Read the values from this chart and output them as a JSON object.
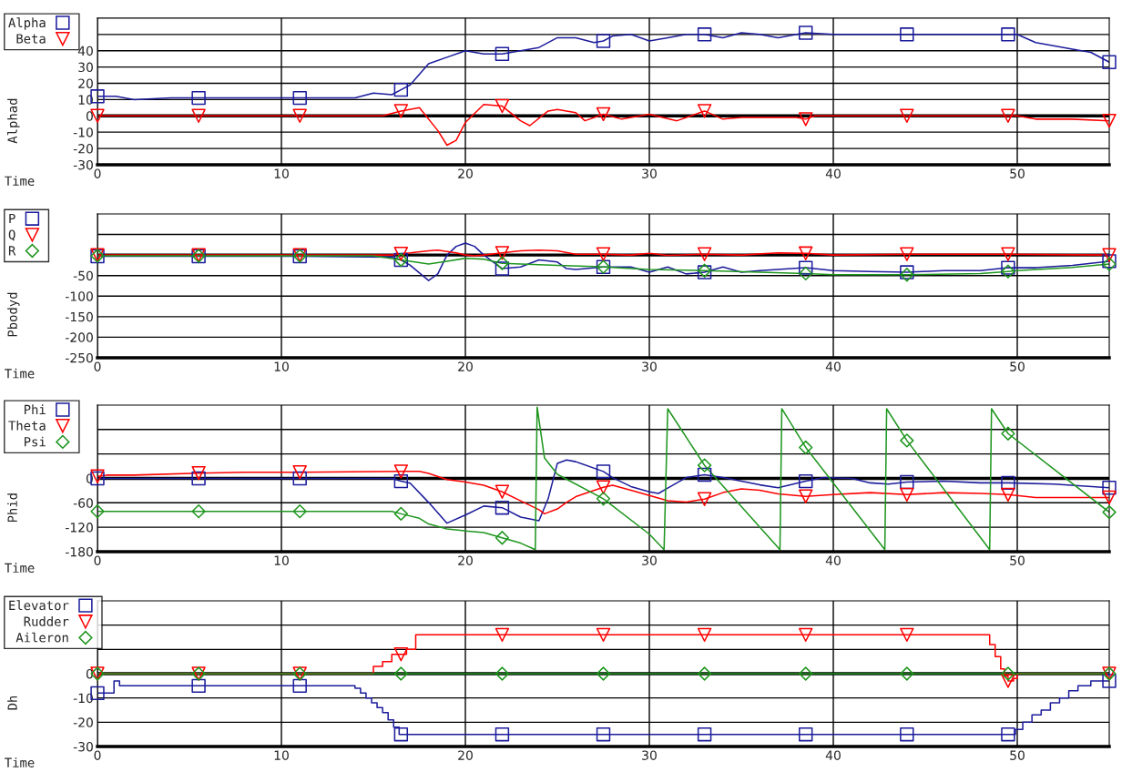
{
  "chart_data": [
    {
      "type": "line",
      "xlabel": "Time",
      "ylabel": "Alphad",
      "xlim": [
        0,
        55
      ],
      "xticks": [
        0,
        10,
        20,
        30,
        40,
        50
      ],
      "ylim": [
        -30,
        60
      ],
      "yticks": [
        -30,
        -20,
        -10,
        0,
        10,
        20,
        30,
        40,
        {
          "value": 50,
          "label": null
        }
      ],
      "grid": true,
      "legend": "top left",
      "ref_lines": [
        {
          "axis": "y",
          "value": 0,
          "color": "#000000"
        }
      ],
      "series": [
        {
          "color": "#1c1c9c",
          "x": [
            0,
            1,
            2,
            4,
            5.5,
            8,
            11,
            14,
            15,
            16,
            16.5,
            17,
            18,
            19,
            20,
            21,
            22,
            23,
            24,
            25,
            26,
            27,
            27.5,
            28,
            29,
            30,
            31,
            32,
            33,
            34,
            35,
            36,
            37,
            38,
            38.5,
            40,
            42,
            44,
            46,
            48,
            49.5,
            50,
            51,
            53,
            54,
            55
          ],
          "values": [
            12,
            12,
            10,
            11,
            11,
            11,
            11,
            11,
            14,
            13,
            16,
            19,
            32,
            36,
            40,
            38,
            38,
            40,
            42,
            48,
            48,
            45,
            46,
            49,
            50,
            46,
            48,
            50,
            50,
            48,
            51,
            50,
            48,
            50,
            51,
            50,
            50,
            50,
            50,
            50,
            50,
            50,
            45,
            41,
            39,
            33
          ]
        },
        {
          "name": "Alpha",
          "type": "scatter",
          "color": "#1c1c9c",
          "marker": "square",
          "x": [
            0,
            5.5,
            11,
            16.5,
            22,
            27.5,
            33,
            38.5,
            44,
            49.5,
            55
          ],
          "values": [
            12,
            11,
            11,
            16,
            38,
            46,
            50,
            51,
            50,
            50,
            33
          ]
        },
        {
          "color": "#ff0000",
          "x": [
            0,
            5.5,
            11,
            15.5,
            16.5,
            17.5,
            18.5,
            19,
            19.5,
            20,
            21,
            22,
            23,
            23.5,
            24.5,
            25,
            26,
            26.5,
            27.5,
            28.5,
            30,
            31.5,
            33,
            34,
            35,
            38,
            38.5,
            39,
            40,
            44,
            49.5,
            50,
            51,
            53,
            55
          ],
          "values": [
            0,
            0,
            0,
            0,
            3,
            5,
            -9,
            -18,
            -15,
            -4,
            7,
            6,
            -3,
            -6,
            3,
            4,
            2,
            -3,
            1,
            -2,
            1,
            -3,
            3,
            -2,
            -1,
            -1,
            -2,
            0,
            0,
            0,
            0,
            0,
            -2,
            -2,
            -3
          ]
        },
        {
          "name": "Beta",
          "type": "scatter",
          "color": "#ff0000",
          "marker": "triangle",
          "x": [
            0,
            5.5,
            11,
            16.5,
            22,
            27.5,
            33,
            38.5,
            44,
            49.5,
            55
          ],
          "values": [
            0,
            0,
            0,
            3,
            6,
            1,
            3,
            -2,
            0,
            0,
            -3
          ]
        }
      ]
    },
    {
      "type": "line",
      "xlabel": "Time",
      "ylabel": "Pbodyd",
      "xlim": [
        0,
        55
      ],
      "xticks": [
        0,
        10,
        20,
        30,
        40,
        50
      ],
      "ylim": [
        -250,
        100
      ],
      "yticks": [
        -250,
        -200,
        -150,
        -100,
        -50,
        {
          "value": 0,
          "label": null
        },
        {
          "value": 50,
          "label": null
        }
      ],
      "grid": true,
      "legend": "top left",
      "ref_lines": [
        {
          "axis": "y",
          "value": 0,
          "color": "#000000"
        }
      ],
      "series": [
        {
          "color": "#1c1c9c",
          "x": [
            0,
            5.5,
            11,
            16,
            16.5,
            17,
            18,
            18.5,
            19,
            19.5,
            20,
            20.5,
            21,
            22,
            23,
            24,
            25,
            25.5,
            26,
            27.5,
            29,
            30,
            31,
            32,
            33,
            34,
            35,
            36,
            38.5,
            40,
            42,
            44,
            46,
            48,
            49.5,
            51,
            53,
            55
          ],
          "values": [
            -3,
            -3,
            -3,
            -5,
            -12,
            -25,
            -62,
            -46,
            0,
            21,
            29,
            21,
            0,
            -33,
            -29,
            -12,
            -17,
            -33,
            -35,
            -29,
            -29,
            -42,
            -29,
            -46,
            -42,
            -29,
            -42,
            -38,
            -31,
            -38,
            -40,
            -42,
            -38,
            -38,
            -31,
            -31,
            -25,
            -15
          ]
        },
        {
          "name": "P",
          "type": "scatter",
          "color": "#1c1c9c",
          "marker": "square",
          "x": [
            0,
            5.5,
            11,
            16.5,
            22,
            27.5,
            33,
            38.5,
            44,
            49.5,
            55
          ],
          "values": [
            -3,
            -3,
            -3,
            -12,
            -33,
            -29,
            -42,
            -31,
            -42,
            -31,
            -15
          ]
        },
        {
          "color": "#ff0000",
          "x": [
            0,
            5.5,
            11,
            16,
            16.5,
            17,
            18,
            18.5,
            19.5,
            20,
            20.5,
            21,
            22,
            23,
            24,
            25,
            26,
            27.5,
            29,
            30,
            31,
            33,
            35,
            37,
            38.5,
            40,
            44,
            49.5,
            55
          ],
          "values": [
            0,
            0,
            0,
            0,
            3,
            5,
            10,
            12,
            5,
            0,
            -2,
            0,
            5,
            10,
            12,
            10,
            2,
            2,
            0,
            4,
            -1,
            2,
            0,
            5,
            4,
            0,
            2,
            2,
            0
          ]
        },
        {
          "name": "Q",
          "type": "scatter",
          "color": "#ff0000",
          "marker": "triangle",
          "x": [
            0,
            5.5,
            11,
            16.5,
            22,
            27.5,
            33,
            38.5,
            44,
            49.5,
            55
          ],
          "values": [
            0,
            0,
            0,
            3,
            5,
            2,
            2,
            4,
            2,
            2,
            0
          ]
        },
        {
          "color": "#1e961e",
          "x": [
            0,
            5.5,
            11,
            15,
            16.5,
            17,
            18,
            19,
            20,
            21,
            22,
            23,
            25,
            27,
            27.5,
            30,
            33,
            36,
            38.5,
            40,
            44,
            48,
            49.5,
            50,
            53,
            55
          ],
          "values": [
            -2,
            -2,
            -2,
            -2,
            -12,
            -15,
            -22,
            -15,
            -8,
            -10,
            -20,
            -22,
            -25,
            -28,
            -29,
            -35,
            -38,
            -42,
            -45,
            -48,
            -48,
            -45,
            -40,
            -38,
            -30,
            -22
          ]
        },
        {
          "name": "R",
          "type": "scatter",
          "color": "#1e961e",
          "marker": "diamond",
          "x": [
            0,
            5.5,
            11,
            16.5,
            22,
            27.5,
            33,
            38.5,
            44,
            49.5,
            55
          ],
          "values": [
            -2,
            -2,
            -2,
            -12,
            -20,
            -29,
            -38,
            -45,
            -48,
            -40,
            -22
          ]
        }
      ]
    },
    {
      "type": "line",
      "xlabel": "Time",
      "ylabel": "Phid",
      "xlim": [
        0,
        55
      ],
      "xticks": [
        0,
        10,
        20,
        30,
        40,
        50
      ],
      "ylim": [
        -180,
        180
      ],
      "yticks": [
        -180,
        -120,
        -60,
        0,
        {
          "value": 60,
          "label": null
        },
        {
          "value": 120,
          "label": null
        }
      ],
      "grid": true,
      "legend": "top left",
      "ref_lines": [
        {
          "axis": "y",
          "value": 0,
          "color": "#000000"
        }
      ],
      "series": [
        {
          "color": "#1c1c9c",
          "x": [
            0,
            5.5,
            11,
            16,
            16.5,
            17,
            18,
            19,
            20,
            21,
            22,
            23,
            24,
            24.5,
            25,
            25.5,
            26,
            27.5,
            28,
            29,
            30,
            30.5,
            31,
            32,
            33,
            34,
            36,
            37,
            38.5,
            39.5,
            41,
            42,
            43,
            44,
            46,
            48,
            49.5,
            52,
            55
          ],
          "values": [
            0,
            0,
            0,
            0,
            -7,
            -12,
            -59,
            -110,
            -90,
            -68,
            -72,
            -95,
            -104,
            -50,
            37,
            45,
            41,
            17,
            2,
            -20,
            -33,
            -37,
            -24,
            2,
            9,
            2,
            -16,
            -23,
            -7,
            2,
            0,
            -11,
            -14,
            -9,
            -7,
            -11,
            -11,
            -14,
            -23
          ]
        },
        {
          "name": "Phi",
          "type": "scatter",
          "color": "#1c1c9c",
          "marker": "square",
          "x": [
            0,
            5.5,
            11,
            16.5,
            22,
            27.5,
            33,
            38.5,
            44,
            49.5,
            55
          ],
          "values": [
            0,
            0,
            0,
            -7,
            -72,
            17,
            9,
            -7,
            -9,
            -11,
            -23
          ]
        },
        {
          "color": "#ff0000",
          "x": [
            0,
            0.5,
            2,
            5.5,
            8,
            11,
            16.5,
            17.5,
            18,
            19,
            20,
            21,
            22,
            23,
            24,
            24.3,
            25,
            25.5,
            26,
            27.5,
            28,
            29,
            30,
            31,
            32,
            33,
            34,
            35,
            36,
            37,
            38.5,
            40,
            42,
            44,
            46,
            48,
            49.5,
            51,
            55
          ],
          "values": [
            5,
            8,
            8,
            13,
            15,
            15,
            17,
            17,
            12,
            -3,
            -9,
            -17,
            -33,
            -55,
            -77,
            -87,
            -75,
            -59,
            -45,
            -22,
            -17,
            -29,
            -42,
            -55,
            -58,
            -51,
            -35,
            -26,
            -29,
            -38,
            -44,
            -40,
            -35,
            -40,
            -35,
            -37,
            -40,
            -47,
            -47
          ]
        },
        {
          "name": "Theta",
          "type": "scatter",
          "color": "#ff0000",
          "marker": "triangle",
          "x": [
            0,
            5.5,
            11,
            16.5,
            22,
            27.5,
            33,
            38.5,
            44,
            49.5,
            55
          ],
          "values": [
            5,
            13,
            15,
            17,
            -33,
            -22,
            -51,
            -44,
            -40,
            -40,
            -47
          ]
        },
        {
          "color": "#1e961e",
          "x": [
            0,
            5.5,
            11,
            16,
            16.5,
            17.5,
            18,
            19,
            20,
            21,
            22,
            23,
            23.8,
            23.9,
            24.3,
            25,
            27.5,
            30,
            30.8,
            31,
            33,
            37.1,
            37.2,
            38.5,
            42.8,
            42.9,
            44,
            48.5,
            48.6,
            49.5,
            55
          ],
          "values": [
            -81,
            -81,
            -81,
            -81,
            -87,
            -98,
            -112,
            -124,
            -129,
            -133,
            -146,
            -159,
            -175,
            175,
            50,
            10,
            -50,
            -137,
            -175,
            171,
            32,
            -175,
            171,
            76,
            -175,
            171,
            93,
            -175,
            171,
            110,
            -83
          ]
        },
        {
          "name": "Psi",
          "type": "scatter",
          "color": "#1e961e",
          "marker": "diamond",
          "x": [
            0,
            5.5,
            11,
            16.5,
            22,
            27.5,
            33,
            38.5,
            44,
            49.5,
            55
          ],
          "values": [
            -81,
            -81,
            -81,
            -87,
            -146,
            -50,
            32,
            76,
            93,
            110,
            -83
          ]
        }
      ]
    },
    {
      "type": "line",
      "xlabel": "Time",
      "ylabel": "Dh",
      "xlim": [
        0,
        55
      ],
      "xticks": [
        0,
        10,
        20,
        30,
        40,
        50
      ],
      "ylim": [
        -30,
        30
      ],
      "yticks": [
        -30,
        -20,
        -10,
        0,
        {
          "value": 10,
          "label": null
        },
        {
          "value": 20,
          "label": null
        }
      ],
      "grid": true,
      "legend": "top left",
      "ref_lines": [
        {
          "axis": "y",
          "value": 0,
          "color": "#000000"
        }
      ],
      "series": [
        {
          "type": "step",
          "color": "#1c1c9c",
          "x": [
            0,
            0.9,
            1.2,
            5.5,
            11,
            14,
            14.3,
            14.6,
            14.9,
            15.2,
            15.5,
            15.8,
            16.1,
            16.4,
            16.5,
            22,
            27.5,
            33,
            38.5,
            44,
            49.5,
            49.9,
            50.3,
            50.8,
            51.3,
            51.8,
            52.3,
            52.8,
            53.3,
            54,
            55
          ],
          "values": [
            -8,
            -3,
            -5,
            -5,
            -5,
            -6,
            -8,
            -10,
            -12,
            -14,
            -16,
            -19,
            -22,
            -25,
            -25,
            -25,
            -25,
            -25,
            -25,
            -25,
            -25,
            -23,
            -20,
            -17,
            -15,
            -12,
            -10,
            -7,
            -5,
            -3,
            -3
          ]
        },
        {
          "name": "Elevator",
          "type": "scatter",
          "color": "#1c1c9c",
          "marker": "square",
          "x": [
            0,
            5.5,
            11,
            16.5,
            22,
            27.5,
            33,
            38.5,
            44,
            49.5,
            55
          ],
          "values": [
            -8,
            -5,
            -5,
            -25,
            -25,
            -25,
            -25,
            -25,
            -25,
            -25,
            -3
          ]
        },
        {
          "type": "step",
          "color": "#ff0000",
          "x": [
            0,
            5.5,
            11,
            15,
            15.5,
            16,
            16.5,
            16.8,
            17.3,
            22,
            27.5,
            33,
            38.5,
            44,
            48.5,
            48.8,
            49.1,
            49.3,
            49.5,
            49.8,
            50,
            55
          ],
          "values": [
            0,
            0,
            0,
            3,
            5,
            8,
            8,
            10,
            16,
            16,
            16,
            16,
            16,
            16,
            12,
            7,
            2,
            -1,
            -3,
            -2,
            0,
            0
          ]
        },
        {
          "name": "Rudder",
          "type": "scatter",
          "color": "#ff0000",
          "marker": "triangle",
          "x": [
            0,
            5.5,
            11,
            16.5,
            22,
            27.5,
            33,
            38.5,
            44,
            49.5,
            55
          ],
          "values": [
            0,
            0,
            0,
            8,
            16,
            16,
            16,
            16,
            16,
            -3,
            0
          ]
        },
        {
          "color": "#1e961e",
          "x": [
            0,
            5.5,
            11,
            16.5,
            22,
            27.5,
            33,
            38.5,
            44,
            49.5,
            55
          ],
          "values": [
            0,
            0,
            0,
            0,
            0,
            0,
            0,
            0,
            0,
            0,
            0
          ]
        },
        {
          "name": "Aileron",
          "type": "scatter",
          "color": "#1e961e",
          "marker": "diamond",
          "x": [
            0,
            5.5,
            11,
            16.5,
            22,
            27.5,
            33,
            38.5,
            44,
            49.5,
            55
          ],
          "values": [
            0,
            0,
            0,
            0,
            0,
            0,
            0,
            0,
            0,
            0,
            0
          ]
        }
      ]
    }
  ]
}
